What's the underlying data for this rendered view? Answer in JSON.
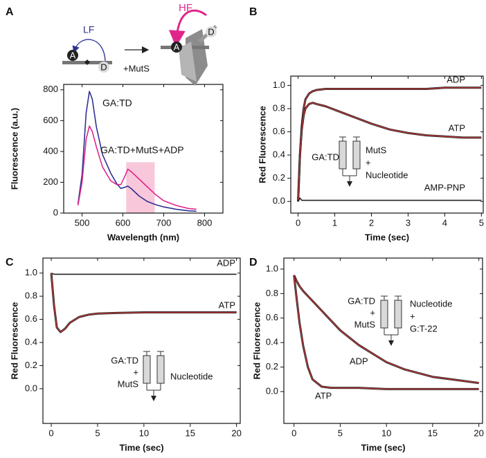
{
  "chart_data": [
    {
      "type": "line",
      "panel": "A",
      "xlabel": "Wavelength (nm)",
      "ylabel": "Fluorescence (a.u.)",
      "xlim": [
        455,
        845
      ],
      "ylim": [
        0,
        835
      ],
      "xticks": [
        500,
        600,
        700,
        800
      ],
      "yticks": [
        0,
        200,
        400,
        600,
        800
      ],
      "x": [
        490,
        500,
        510,
        518,
        525,
        535,
        550,
        570,
        585,
        595,
        605,
        612,
        620,
        640,
        660,
        680,
        700,
        730,
        760,
        780
      ],
      "series": [
        {
          "name": "GA:TD",
          "color": "#2e3192",
          "values": [
            60,
            250,
            650,
            790,
            740,
            560,
            380,
            260,
            190,
            160,
            168,
            175,
            160,
            110,
            75,
            55,
            40,
            25,
            15,
            12
          ]
        },
        {
          "name": "GA:TD+MutS+ADP",
          "color": "#e0268a",
          "values": [
            50,
            200,
            480,
            565,
            530,
            430,
            300,
            210,
            185,
            185,
            240,
            285,
            270,
            220,
            170,
            120,
            80,
            50,
            30,
            25
          ]
        }
      ],
      "highlight": {
        "x": [
          608,
          678
        ],
        "y": [
          0,
          330
        ],
        "color": "#f8c8da"
      },
      "schematic": {
        "left_label": "LF",
        "acceptor": "A",
        "donor": "D",
        "add": "+MutS",
        "right_label": "HF"
      }
    },
    {
      "type": "line",
      "panel": "B",
      "xlabel": "Time (sec)",
      "ylabel": "Red Fluorescence",
      "xlim": [
        -0.2,
        5.05
      ],
      "ylim": [
        -0.1,
        1.08
      ],
      "xticks": [
        0,
        1,
        2,
        3,
        4,
        5
      ],
      "yticks": [
        {
          "value": 0,
          "label": "0.0"
        },
        0.2,
        0.4,
        0.6,
        0.8,
        {
          "value": 1,
          "label": "1.0"
        }
      ],
      "x": [
        0,
        0.05,
        0.1,
        0.15,
        0.2,
        0.3,
        0.4,
        0.5,
        0.75,
        1,
        1.5,
        2,
        2.5,
        3,
        3.5,
        4,
        4.5,
        5
      ],
      "series": [
        {
          "name": "ADP",
          "color": "#222222",
          "fit_color": "#c0393b",
          "values": [
            0,
            0.4,
            0.65,
            0.8,
            0.88,
            0.93,
            0.95,
            0.96,
            0.97,
            0.97,
            0.97,
            0.97,
            0.97,
            0.97,
            0.97,
            0.98,
            0.98,
            0.98
          ]
        },
        {
          "name": "ATP",
          "color": "#222222",
          "fit_color": "#c0393b",
          "values": [
            0,
            0.4,
            0.62,
            0.74,
            0.8,
            0.84,
            0.85,
            0.84,
            0.82,
            0.79,
            0.73,
            0.67,
            0.62,
            0.59,
            0.57,
            0.56,
            0.55,
            0.55
          ]
        },
        {
          "name": "AMP-PNP",
          "color": "#222222",
          "values": [
            0,
            0.03,
            0.01,
            0.01,
            0.01,
            0.01,
            0.01,
            0.01,
            0.01,
            0.01,
            0.01,
            0.01,
            0.01,
            0.01,
            0.01,
            0.01,
            0.01,
            0.01
          ]
        }
      ],
      "inset": {
        "left": [
          "GA:TD"
        ],
        "right": [
          "MutS",
          "+",
          "Nucleotide"
        ]
      }
    },
    {
      "type": "line",
      "panel": "C",
      "xlabel": "Time (sec)",
      "ylabel": "Red Fluorescence",
      "xlim": [
        -0.9,
        20.4
      ],
      "ylim": [
        -0.3,
        1.13
      ],
      "xticks": [
        0,
        5,
        10,
        15,
        20
      ],
      "yticks": [
        {
          "value": 0,
          "label": "0.0"
        },
        0.2,
        0.4,
        0.6,
        0.8,
        {
          "value": 1,
          "label": "1.0"
        }
      ],
      "x": [
        0,
        0.3,
        0.6,
        1,
        1.5,
        2,
        3,
        4,
        5,
        7,
        10,
        12,
        15,
        18,
        20
      ],
      "series": [
        {
          "name": "ADP",
          "color": "#222222",
          "values": [
            1.0,
            0.99,
            0.99,
            0.99,
            0.99,
            0.99,
            0.99,
            0.99,
            0.99,
            0.99,
            0.99,
            0.99,
            0.99,
            0.99,
            0.99
          ]
        },
        {
          "name": "ATP",
          "color": "#222222",
          "fit_color": "#c0393b",
          "values": [
            1.0,
            0.72,
            0.53,
            0.49,
            0.52,
            0.57,
            0.62,
            0.64,
            0.65,
            0.655,
            0.66,
            0.66,
            0.66,
            0.66,
            0.66
          ]
        }
      ],
      "inset": {
        "left": [
          "GA:TD",
          "+",
          "MutS"
        ],
        "right": [
          "Nucleotide"
        ]
      }
    },
    {
      "type": "line",
      "panel": "D",
      "xlabel": "Time (sec)",
      "ylabel": "Red Fluorescence",
      "xlim": [
        -1.1,
        20.4
      ],
      "ylim": [
        -0.26,
        1.09
      ],
      "xticks": [
        0,
        5,
        10,
        15,
        20
      ],
      "yticks": [
        {
          "value": 0,
          "label": "0.0"
        },
        0.2,
        0.4,
        0.6,
        0.8,
        {
          "value": 1,
          "label": "1.0"
        }
      ],
      "x": [
        0,
        0.3,
        0.6,
        1,
        1.5,
        2,
        3,
        4,
        5,
        7,
        10,
        12,
        15,
        18,
        20
      ],
      "series": [
        {
          "name": "ADP",
          "color": "#222222",
          "fit_color": "#c0393b",
          "values": [
            0.95,
            0.9,
            0.86,
            0.82,
            0.78,
            0.74,
            0.66,
            0.58,
            0.5,
            0.38,
            0.24,
            0.18,
            0.12,
            0.09,
            0.07
          ]
        },
        {
          "name": "ATP",
          "color": "#222222",
          "fit_color": "#c0393b",
          "values": [
            0.95,
            0.75,
            0.56,
            0.37,
            0.2,
            0.1,
            0.04,
            0.03,
            0.03,
            0.03,
            0.02,
            0.02,
            0.02,
            0.02,
            0.02
          ]
        }
      ],
      "inset": {
        "left": [
          "GA:TD",
          "+",
          "MutS"
        ],
        "right": [
          "Nucleotide",
          "+",
          "G:T-22"
        ]
      }
    }
  ]
}
